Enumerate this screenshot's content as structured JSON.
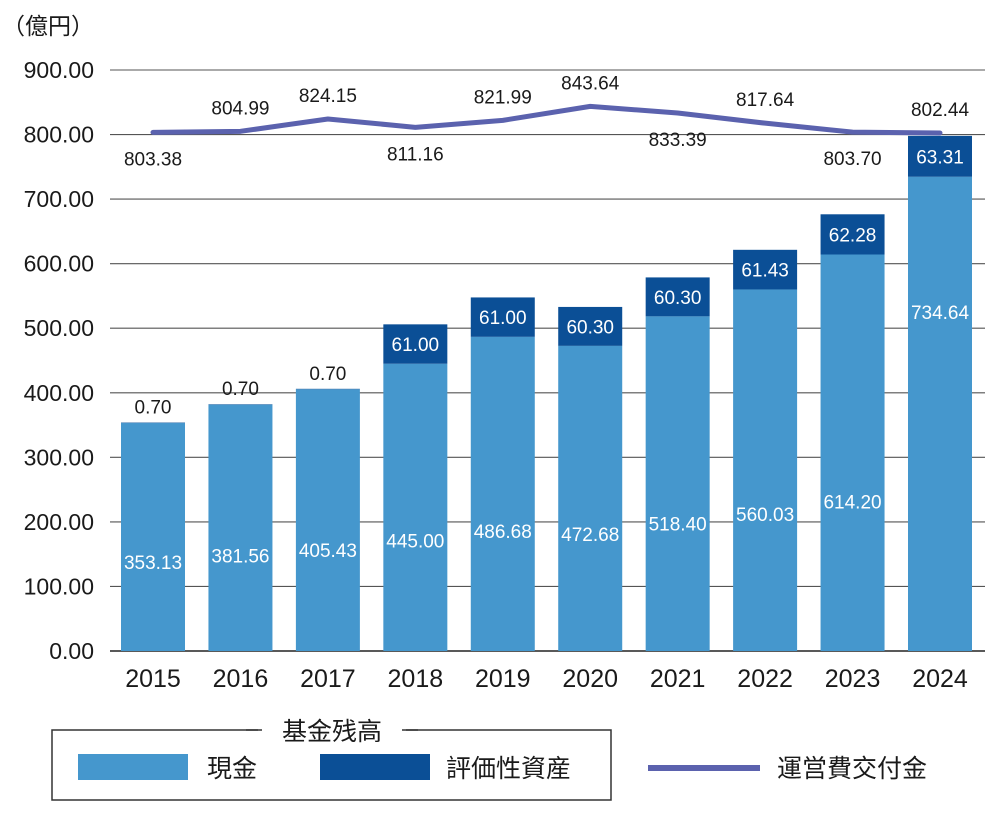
{
  "chart_data": {
    "type": "bar",
    "unit_label": "（億円）",
    "categories": [
      "2015",
      "2016",
      "2017",
      "2018",
      "2019",
      "2020",
      "2021",
      "2022",
      "2023",
      "2024"
    ],
    "ylim": [
      0,
      900
    ],
    "yticks": [
      "0.00",
      "100.00",
      "200.00",
      "300.00",
      "400.00",
      "500.00",
      "600.00",
      "700.00",
      "800.00",
      "900.00"
    ],
    "stacked": true,
    "series": [
      {
        "name": "現金",
        "color": "#4597cd",
        "values": [
          353.13,
          381.56,
          405.43,
          445.0,
          486.68,
          472.68,
          518.4,
          560.03,
          614.2,
          734.64
        ],
        "labels": [
          "353.13",
          "381.56",
          "405.43",
          "445.00",
          "486.68",
          "472.68",
          "518.40",
          "560.03",
          "614.20",
          "734.64"
        ]
      },
      {
        "name": "評価性資産",
        "color": "#0b4f96",
        "values": [
          0.7,
          0.7,
          0.7,
          61.0,
          61.0,
          60.3,
          60.3,
          61.43,
          62.28,
          63.31
        ],
        "labels": [
          "0.70",
          "0.70",
          "0.70",
          "61.00",
          "61.00",
          "60.30",
          "60.30",
          "61.43",
          "62.28",
          "63.31"
        ]
      }
    ],
    "line_series": {
      "name": "運営費交付金",
      "color": "#5b62ae",
      "values": [
        803.38,
        804.99,
        824.15,
        811.16,
        821.99,
        843.64,
        833.39,
        817.64,
        803.7,
        802.44
      ],
      "labels": [
        "803.38",
        "804.99",
        "824.15",
        "811.16",
        "821.99",
        "843.64",
        "833.39",
        "817.64",
        "803.70",
        "802.44"
      ],
      "label_side": [
        "below",
        "above",
        "above",
        "below",
        "above",
        "above",
        "below",
        "above",
        "below",
        "above"
      ]
    },
    "legend": {
      "group_title": "基金残高",
      "items": [
        "現金",
        "評価性資産",
        "運営費交付金"
      ],
      "placement": "bottom"
    },
    "grid": true
  }
}
